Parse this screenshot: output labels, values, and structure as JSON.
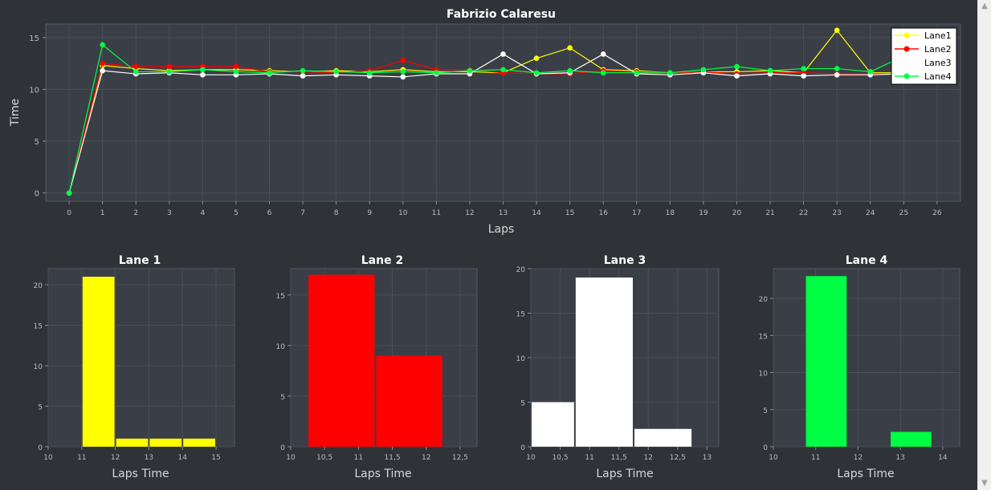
{
  "chart_data": [
    {
      "type": "line",
      "title": "Fabrizio Calaresu",
      "xlabel": "Laps",
      "ylabel": "Time",
      "xlim": [
        -0.7,
        26.7
      ],
      "ylim": [
        -0.8,
        16.3
      ],
      "xticks": [
        0,
        1,
        2,
        3,
        4,
        5,
        6,
        7,
        8,
        9,
        10,
        11,
        12,
        13,
        14,
        15,
        16,
        17,
        18,
        19,
        20,
        21,
        22,
        23,
        24,
        25,
        26
      ],
      "yticks": [
        0,
        5,
        10,
        15
      ],
      "grid": true,
      "legend": "top-right",
      "x": [
        0,
        1,
        2,
        3,
        4,
        5,
        6,
        7,
        8,
        9,
        10,
        11,
        12,
        13,
        14,
        15,
        16,
        17,
        18,
        19,
        20,
        21,
        22,
        23,
        24,
        25
      ],
      "series": [
        {
          "name": "Lane1",
          "color": "#ffff00",
          "values": [
            0,
            12.3,
            12.0,
            11.8,
            11.9,
            11.9,
            11.8,
            11.7,
            11.8,
            11.7,
            11.9,
            11.7,
            11.7,
            11.6,
            13.0,
            14.0,
            11.9,
            11.8,
            11.6,
            11.7,
            11.7,
            11.8,
            11.6,
            15.7,
            11.6,
            11.6
          ]
        },
        {
          "name": "Lane2",
          "color": "#ff0000",
          "values": [
            0,
            12.5,
            12.2,
            12.2,
            12.2,
            12.2,
            11.7,
            11.7,
            11.6,
            11.8,
            12.8,
            11.9,
            11.9,
            11.6,
            11.5,
            11.5,
            11.8,
            11.7,
            11.6,
            11.7,
            11.5,
            11.6,
            11.6,
            11.5,
            11.5,
            11.5
          ]
        },
        {
          "name": "Lane3",
          "color": "#ffffff",
          "values": [
            0,
            11.8,
            11.5,
            11.6,
            11.4,
            11.4,
            11.5,
            11.3,
            11.4,
            11.3,
            11.2,
            11.5,
            11.5,
            13.4,
            11.5,
            11.6,
            13.4,
            11.5,
            11.4,
            11.6,
            11.3,
            11.5,
            11.3,
            11.4,
            11.4,
            11.5
          ]
        },
        {
          "name": "Lane4",
          "color": "#00ff44",
          "values": [
            0,
            14.3,
            11.7,
            11.7,
            11.9,
            11.7,
            11.6,
            11.8,
            11.7,
            11.6,
            11.7,
            11.6,
            11.8,
            11.9,
            11.6,
            11.8,
            11.6,
            11.6,
            11.6,
            11.9,
            12.2,
            11.8,
            12.0,
            12.0,
            11.7,
            13.2
          ]
        }
      ]
    },
    {
      "type": "bar",
      "title": "Lane 1",
      "xlabel": "Laps Time",
      "ylabel": "",
      "color": "#ffff00",
      "xlim": [
        10,
        15.55
      ],
      "ylim": [
        0,
        22
      ],
      "xticks": [
        "10",
        "11",
        "12",
        "13",
        "14",
        "15"
      ],
      "xtick_values": [
        10,
        11,
        12,
        13,
        14,
        15
      ],
      "yticks": [
        0,
        5,
        10,
        15,
        20
      ],
      "bins": [
        [
          11,
          12
        ],
        [
          12,
          13
        ],
        [
          13,
          14
        ],
        [
          14,
          15
        ]
      ],
      "values": [
        21,
        1,
        1,
        1
      ]
    },
    {
      "type": "bar",
      "title": "Lane 2",
      "xlabel": "Laps Time",
      "ylabel": "",
      "color": "#ff0000",
      "xlim": [
        10,
        12.75
      ],
      "ylim": [
        0,
        17.6
      ],
      "xticks": [
        "10",
        "10,5",
        "11",
        "11,5",
        "12",
        "12,5"
      ],
      "xtick_values": [
        10,
        10.5,
        11,
        11.5,
        12,
        12.5
      ],
      "yticks": [
        0,
        5,
        10,
        15
      ],
      "bins": [
        [
          10.25,
          11.25
        ],
        [
          11.25,
          12.25
        ]
      ],
      "values": [
        17,
        9
      ]
    },
    {
      "type": "bar",
      "title": "Lane 3",
      "xlabel": "Laps Time",
      "ylabel": "",
      "color": "#ffffff",
      "xlim": [
        10,
        13.2
      ],
      "ylim": [
        0,
        20
      ],
      "xticks": [
        "10",
        "10,5",
        "11",
        "11,5",
        "12",
        "12,5",
        "13"
      ],
      "xtick_values": [
        10,
        10.5,
        11,
        11.5,
        12,
        12.5,
        13
      ],
      "yticks": [
        0,
        5,
        10,
        15,
        20
      ],
      "bins": [
        [
          10,
          10.75
        ],
        [
          10.75,
          11.75
        ],
        [
          11.75,
          12.75
        ]
      ],
      "values": [
        5,
        19,
        2
      ]
    },
    {
      "type": "bar",
      "title": "Lane 4",
      "xlabel": "Laps Time",
      "ylabel": "",
      "color": "#00ff44",
      "xlim": [
        10,
        14.4
      ],
      "ylim": [
        0,
        24
      ],
      "xticks": [
        "10",
        "11",
        "12",
        "13",
        "14"
      ],
      "xtick_values": [
        10,
        11,
        12,
        13,
        14
      ],
      "yticks": [
        0,
        5,
        10,
        15,
        20
      ],
      "bins": [
        [
          10.75,
          11.75
        ],
        [
          12.75,
          13.75
        ]
      ],
      "values": [
        23,
        2
      ]
    }
  ]
}
